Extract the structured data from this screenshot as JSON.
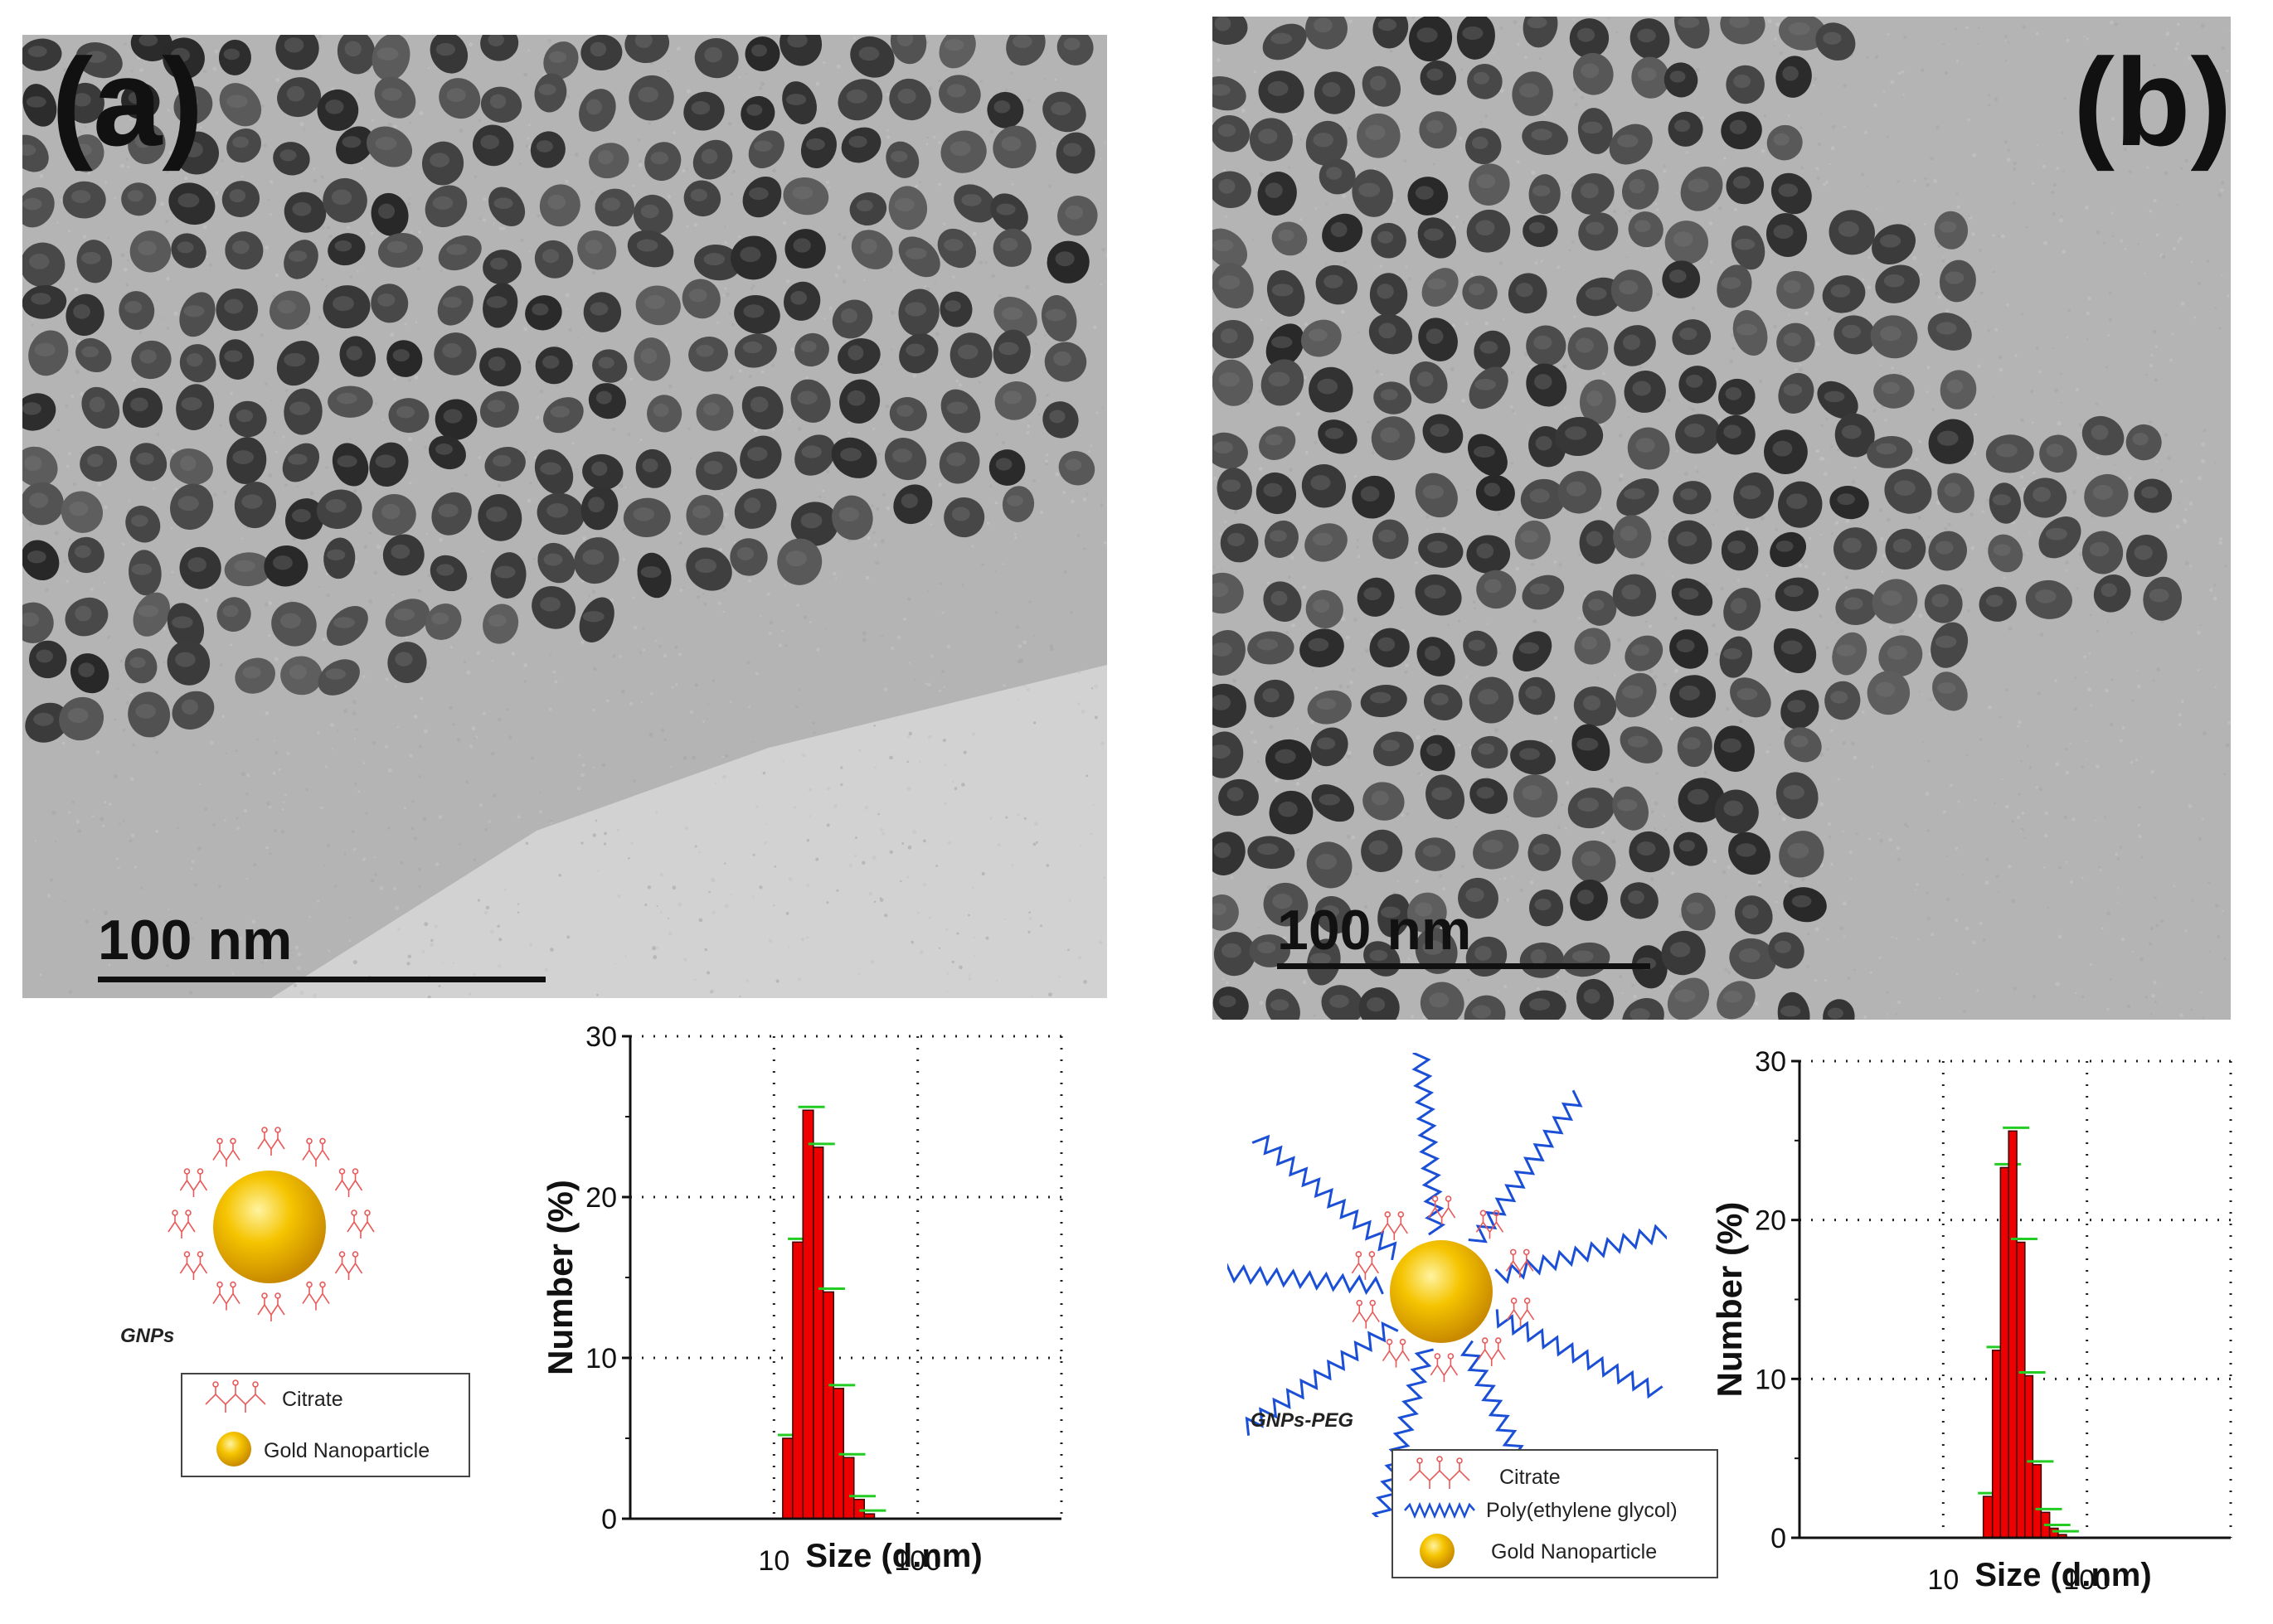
{
  "panels": {
    "a": {
      "label": "(a)",
      "scale_bar": "100 nm",
      "schematic_label": "GNPs",
      "legend": [
        "Citrate",
        "Gold Nanoparticle"
      ]
    },
    "b": {
      "label": "(b)",
      "scale_bar": "100 nm",
      "schematic_label": "GNPs-PEG",
      "legend": [
        "Citrate",
        "Poly(ethylene glycol)",
        "Gold Nanoparticle"
      ]
    }
  },
  "colors": {
    "gold": "#f2b400",
    "citrate": "#e85a5a",
    "peg": "#1a4fd6",
    "bar": "#ee0000",
    "errorbar": "#22cc22"
  },
  "chart_data": [
    {
      "type": "bar",
      "panel": "a",
      "xlabel": "Size (d.nm)",
      "ylabel": "Number (%)",
      "x_scale": "log",
      "xlim": [
        1,
        1000
      ],
      "ylim": [
        0,
        30
      ],
      "x_ticks": [
        10,
        100
      ],
      "y_ticks": [
        0,
        10,
        20,
        30
      ],
      "grid": "dotted",
      "bins": [
        {
          "x0": 11.5,
          "x1": 13.5,
          "value": 5
        },
        {
          "x0": 13.5,
          "x1": 15.9,
          "value": 17.2
        },
        {
          "x0": 15.9,
          "x1": 18.8,
          "value": 25.4
        },
        {
          "x0": 18.8,
          "x1": 22.0,
          "value": 23.1
        },
        {
          "x0": 22.0,
          "x1": 26.0,
          "value": 14.1
        },
        {
          "x0": 26.0,
          "x1": 30.5,
          "value": 8.1
        },
        {
          "x0": 30.5,
          "x1": 36.0,
          "value": 3.8
        },
        {
          "x0": 36.0,
          "x1": 42.5,
          "value": 1.2
        },
        {
          "x0": 42.5,
          "x1": 50.0,
          "value": 0.3
        }
      ]
    },
    {
      "type": "bar",
      "panel": "b",
      "xlabel": "Size (d.nm)",
      "ylabel": "Number (%)",
      "x_scale": "log",
      "xlim": [
        1,
        1000
      ],
      "ylim": [
        0,
        30
      ],
      "x_ticks": [
        10,
        100
      ],
      "y_ticks": [
        0,
        10,
        20,
        30
      ],
      "grid": "dotted",
      "bins": [
        {
          "x0": 19.0,
          "x1": 22.0,
          "value": 2.6
        },
        {
          "x0": 22.0,
          "x1": 25.0,
          "value": 11.8
        },
        {
          "x0": 25.0,
          "x1": 28.5,
          "value": 23.3
        },
        {
          "x0": 28.5,
          "x1": 32.5,
          "value": 25.6
        },
        {
          "x0": 32.5,
          "x1": 37.0,
          "value": 18.6
        },
        {
          "x0": 37.0,
          "x1": 42.0,
          "value": 10.2
        },
        {
          "x0": 42.0,
          "x1": 48.0,
          "value": 4.6
        },
        {
          "x0": 48.0,
          "x1": 55.0,
          "value": 1.6
        },
        {
          "x0": 55.0,
          "x1": 63.0,
          "value": 0.6
        },
        {
          "x0": 63.0,
          "x1": 72.0,
          "value": 0.2
        }
      ]
    }
  ]
}
